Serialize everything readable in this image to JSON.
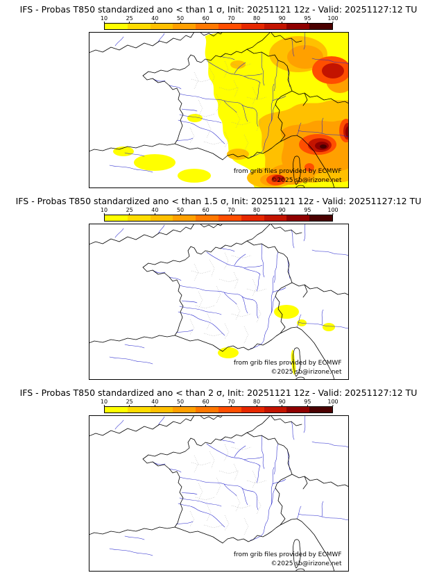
{
  "panels": [
    {
      "title": "IFS - Probas T850  standardized ano < than 1 σ, Init: 20251121 12z - Valid: 20251127:12 TU",
      "credit_line1": "from grib files provided by ECMWF",
      "credit_line2": "©2025 sb@irizone.net"
    },
    {
      "title": "IFS - Probas T850  standardized ano < than 1.5 σ, Init: 20251121 12z - Valid: 20251127:12 TU",
      "credit_line1": "from grib files provided by ECMWF",
      "credit_line2": "©2025 sb@irizone.net"
    },
    {
      "title": "IFS - Probas T850  standardized ano < than 2 σ, Init: 20251121 12z - Valid: 20251127:12 TU",
      "credit_line1": "from grib files provided by ECMWF",
      "credit_line2": "©2025 sb@irizone.net"
    }
  ],
  "colorbar": {
    "tick_labels": [
      "10",
      "25",
      "40",
      "50",
      "60",
      "70",
      "80",
      "90",
      "95",
      "100"
    ],
    "segment_colors": [
      "#FFFF00",
      "#FFDC00",
      "#FFC000",
      "#FFA000",
      "#FF7800",
      "#FF4E00",
      "#E62800",
      "#C31400",
      "#8F0000",
      "#4A0000"
    ]
  },
  "map_colors": {
    "coastline": "#000000",
    "river": "#2222CC",
    "department": "#999999",
    "frame": "#000000",
    "background": "#FFFFFF"
  }
}
